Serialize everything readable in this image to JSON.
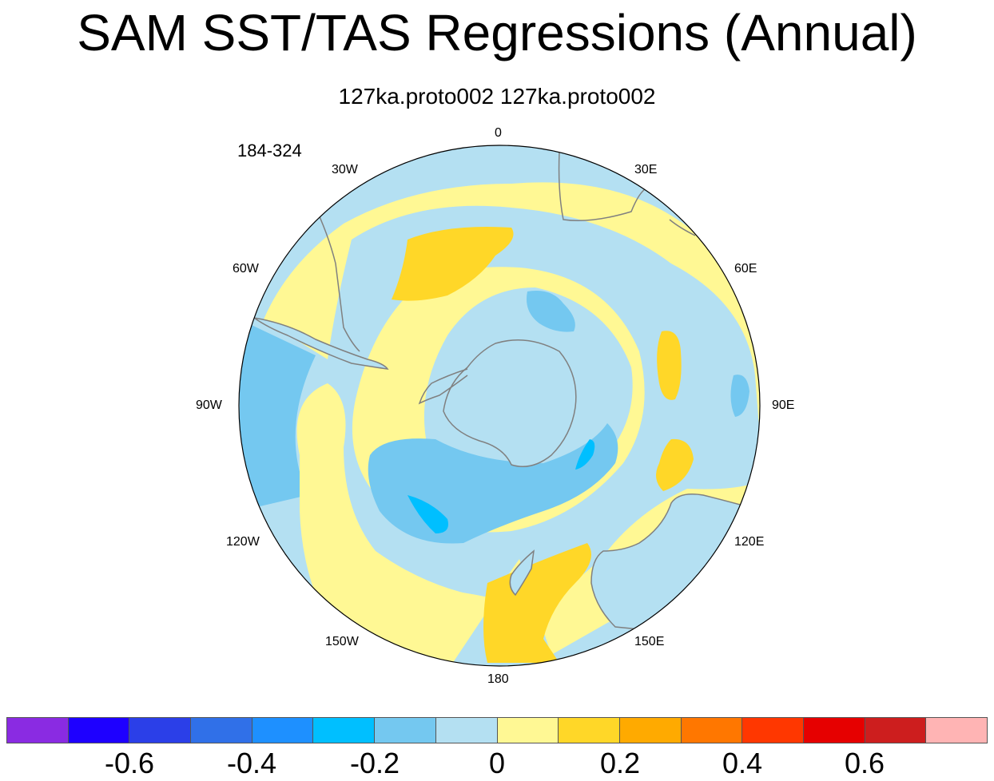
{
  "title": "SAM SST/TAS Regressions (Annual)",
  "subtitle": "127ka.proto002  127ka.proto002",
  "year_range": "184-324",
  "longitude_labels": {
    "lon_0": "0",
    "lon_30e": "30E",
    "lon_60e": "60E",
    "lon_90e": "90E",
    "lon_120e": "120E",
    "lon_150e": "150E",
    "lon_180": "180",
    "lon_150w": "150W",
    "lon_120w": "120W",
    "lon_90w": "90W",
    "lon_60w": "60W",
    "lon_30w": "30W"
  },
  "colorbar": {
    "colors": [
      "#8a2be2",
      "#1e00ff",
      "#2b3fe8",
      "#3070e8",
      "#1e90ff",
      "#00bfff",
      "#74c8f0",
      "#b4e0f2",
      "#fff894",
      "#ffd728",
      "#ffaa00",
      "#ff7700",
      "#ff3700",
      "#e60000",
      "#cd1e1e",
      "#ffb4b4"
    ],
    "tick_labels": [
      "-0.6",
      "-0.4",
      "-0.2",
      "0",
      "0.2",
      "0.4",
      "0.6"
    ]
  },
  "legend_colors": {
    "positive_weak": "#fff894",
    "positive_moderate": "#ffd728",
    "negative_weak": "#b4e0f2",
    "negative_moderate": "#74c8f0",
    "negative_strong": "#00bfff",
    "coastline": "#808080"
  }
}
